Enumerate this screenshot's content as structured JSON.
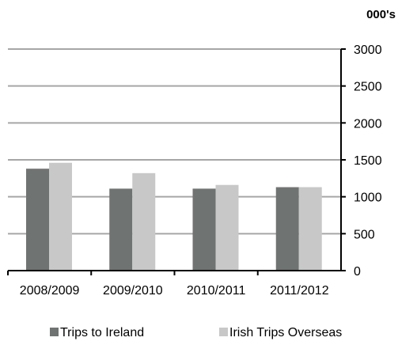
{
  "chart_data": {
    "type": "bar",
    "title": "",
    "unit_label": "000's",
    "xlabel": "",
    "ylabel": "",
    "categories": [
      "2008/2009",
      "2009/2010",
      "2010/2011",
      "2011/2012"
    ],
    "series": [
      {
        "name": "Trips to Ireland",
        "values": [
          1380,
          1110,
          1110,
          1130
        ],
        "color": "#6f7372"
      },
      {
        "name": "Irish Trips Overseas",
        "values": [
          1460,
          1320,
          1160,
          1130
        ],
        "color": "#c8c8c8"
      }
    ],
    "ylim": [
      0,
      3000
    ],
    "yticks": [
      0,
      500,
      1000,
      1500,
      2000,
      2500,
      3000
    ],
    "y_axis_side": "right",
    "grid": true,
    "grid_color": "#a6a6a6",
    "legend_position": "bottom"
  }
}
